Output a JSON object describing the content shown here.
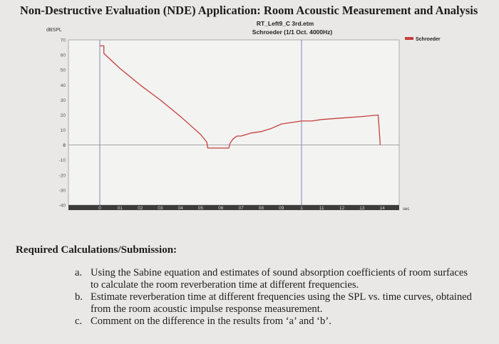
{
  "page": {
    "title": "Non-Destructive Evaluation (NDE) Application: Room Acoustic Measurement and Analysis"
  },
  "chart_data": {
    "type": "line",
    "title": "RT_Left9_C 3rd.etm",
    "subtitle": "Schroeder (1/1 Oct. 4000Hz)",
    "ylabel": "dBSPL",
    "xlabel": "sec",
    "xlim": [
      0,
      1.5
    ],
    "ylim": [
      -40,
      70
    ],
    "yticks": [
      "70",
      "60",
      "50",
      "40",
      "30",
      "20",
      "10",
      "0",
      "-10",
      "-20",
      "-30",
      "-40"
    ],
    "xticks": [
      "0",
      "01",
      "02",
      "03",
      "04",
      "05",
      "06",
      "07",
      "08",
      "09",
      "1",
      "11",
      "12",
      "13",
      "14"
    ],
    "vlines": [
      0,
      1
    ],
    "hline": 0,
    "legend_position": "top-right",
    "series": [
      {
        "name": "Schroeder",
        "color": "#c4403a",
        "x": [
          0,
          0.005,
          0.02,
          0.02,
          0.1,
          0.2,
          0.3,
          0.4,
          0.45,
          0.5,
          0.53,
          0.535,
          0.55,
          0.6,
          0.64,
          0.645,
          0.66,
          0.68,
          0.7,
          0.75,
          0.8,
          0.85,
          0.9,
          0.95,
          1.0,
          1.05,
          1.1,
          1.2,
          1.3,
          1.38,
          1.385,
          1.39
        ],
        "y": [
          66,
          66,
          66,
          61,
          51,
          40,
          30,
          19,
          13,
          7,
          2,
          -2,
          -2,
          -2,
          -2,
          1,
          4,
          6,
          6,
          8,
          9,
          11,
          14,
          15,
          16,
          16,
          17,
          18,
          19,
          20,
          10,
          0
        ]
      }
    ]
  },
  "requirements": {
    "heading": "Required Calculations/Submission:",
    "items": [
      {
        "marker": "a.",
        "text": "Using the Sabine equation and estimates of sound absorption coefficients of room surfaces to calculate the room reverberation time at different frequencies."
      },
      {
        "marker": "b.",
        "text": "Estimate reverberation time at different frequencies using the SPL vs. time curves, obtained from the room acoustic impulse response measurement."
      },
      {
        "marker": "c.",
        "text": "Comment on the difference in the results from ‘a’ and ‘b’."
      }
    ]
  }
}
